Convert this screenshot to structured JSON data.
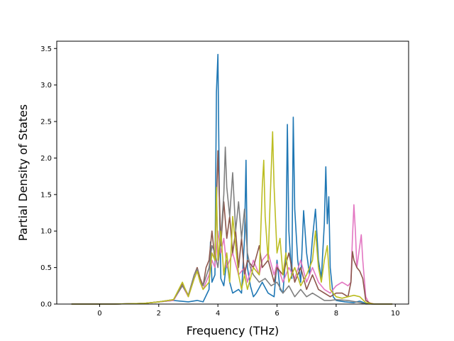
{
  "chart_data": {
    "type": "line",
    "title": "",
    "xlabel": "Frequency (THz)",
    "ylabel": "Partial Density of States",
    "xlim": [
      -1.45,
      10.45
    ],
    "ylim": [
      0,
      3.6
    ],
    "xticks": [
      0,
      2,
      4,
      6,
      8,
      10
    ],
    "yticks": [
      0.0,
      0.5,
      1.0,
      1.5,
      2.0,
      2.5,
      3.0,
      3.5
    ],
    "xtick_labels": [
      "0",
      "2",
      "4",
      "6",
      "8",
      "10"
    ],
    "ytick_labels": [
      "0.0",
      "0.5",
      "1.0",
      "1.5",
      "2.0",
      "2.5",
      "3.0",
      "3.5"
    ],
    "grid": false,
    "legend": "none",
    "series": [
      {
        "color": "#1f77b4",
        "points": [
          [
            -0.95,
            0
          ],
          [
            0.5,
            0
          ],
          [
            1.0,
            0.005
          ],
          [
            1.5,
            0.01
          ],
          [
            2.0,
            0.03
          ],
          [
            2.5,
            0.05
          ],
          [
            3.0,
            0.03
          ],
          [
            3.3,
            0.05
          ],
          [
            3.5,
            0.03
          ],
          [
            3.7,
            0.2
          ],
          [
            3.75,
            0.85
          ],
          [
            3.8,
            0.3
          ],
          [
            3.9,
            0.4
          ],
          [
            3.95,
            2.9
          ],
          [
            4.0,
            3.42
          ],
          [
            4.05,
            1.5
          ],
          [
            4.1,
            0.35
          ],
          [
            4.2,
            0.25
          ],
          [
            4.3,
            0.6
          ],
          [
            4.4,
            0.3
          ],
          [
            4.5,
            0.15
          ],
          [
            4.7,
            0.2
          ],
          [
            4.8,
            0.15
          ],
          [
            4.9,
            0.9
          ],
          [
            4.95,
            1.97
          ],
          [
            5.0,
            0.5
          ],
          [
            5.1,
            0.25
          ],
          [
            5.2,
            0.1
          ],
          [
            5.3,
            0.15
          ],
          [
            5.5,
            0.3
          ],
          [
            5.7,
            0.15
          ],
          [
            5.9,
            0.1
          ],
          [
            6.0,
            0.6
          ],
          [
            6.1,
            0.2
          ],
          [
            6.2,
            0.15
          ],
          [
            6.3,
            0.7
          ],
          [
            6.35,
            2.46
          ],
          [
            6.4,
            1.0
          ],
          [
            6.5,
            0.35
          ],
          [
            6.55,
            2.56
          ],
          [
            6.6,
            1.3
          ],
          [
            6.7,
            0.6
          ],
          [
            6.8,
            0.3
          ],
          [
            6.9,
            1.28
          ],
          [
            7.0,
            0.7
          ],
          [
            7.1,
            0.4
          ],
          [
            7.2,
            0.9
          ],
          [
            7.3,
            1.3
          ],
          [
            7.4,
            0.6
          ],
          [
            7.5,
            0.35
          ],
          [
            7.6,
            1.1
          ],
          [
            7.65,
            1.88
          ],
          [
            7.7,
            1.1
          ],
          [
            7.75,
            1.47
          ],
          [
            7.8,
            0.5
          ],
          [
            7.9,
            0.1
          ],
          [
            8.0,
            0.05
          ],
          [
            8.3,
            0.03
          ],
          [
            8.6,
            0.02
          ],
          [
            8.8,
            0.04
          ],
          [
            9.0,
            0.01
          ],
          [
            9.3,
            0
          ],
          [
            9.9,
            0
          ]
        ]
      },
      {
        "color": "#e377c2",
        "points": [
          [
            -0.95,
            0
          ],
          [
            0.5,
            0
          ],
          [
            1.0,
            0.005
          ],
          [
            1.5,
            0.01
          ],
          [
            2.0,
            0.03
          ],
          [
            2.5,
            0.05
          ],
          [
            2.8,
            0.25
          ],
          [
            3.0,
            0.1
          ],
          [
            3.2,
            0.35
          ],
          [
            3.3,
            0.45
          ],
          [
            3.4,
            0.3
          ],
          [
            3.5,
            0.2
          ],
          [
            3.7,
            0.4
          ],
          [
            3.8,
            0.6
          ],
          [
            3.9,
            0.5
          ],
          [
            4.0,
            1.0
          ],
          [
            4.1,
            0.7
          ],
          [
            4.2,
            0.9
          ],
          [
            4.3,
            0.5
          ],
          [
            4.5,
            0.7
          ],
          [
            4.7,
            0.4
          ],
          [
            4.9,
            0.5
          ],
          [
            5.0,
            0.3
          ],
          [
            5.2,
            0.6
          ],
          [
            5.4,
            0.4
          ],
          [
            5.5,
            0.6
          ],
          [
            5.7,
            0.7
          ],
          [
            5.9,
            0.4
          ],
          [
            6.0,
            0.55
          ],
          [
            6.2,
            0.3
          ],
          [
            6.4,
            0.5
          ],
          [
            6.6,
            0.35
          ],
          [
            6.8,
            0.6
          ],
          [
            7.0,
            0.3
          ],
          [
            7.2,
            0.5
          ],
          [
            7.4,
            0.3
          ],
          [
            7.6,
            0.2
          ],
          [
            7.8,
            0.15
          ],
          [
            8.0,
            0.25
          ],
          [
            8.2,
            0.3
          ],
          [
            8.4,
            0.25
          ],
          [
            8.5,
            0.3
          ],
          [
            8.55,
            0.9
          ],
          [
            8.6,
            1.36
          ],
          [
            8.65,
            1.0
          ],
          [
            8.7,
            0.5
          ],
          [
            8.8,
            0.8
          ],
          [
            8.85,
            0.95
          ],
          [
            8.9,
            0.6
          ],
          [
            9.0,
            0.1
          ],
          [
            9.1,
            0.02
          ],
          [
            9.3,
            0
          ],
          [
            9.9,
            0
          ]
        ]
      },
      {
        "color": "#8c564b",
        "points": [
          [
            -0.95,
            0
          ],
          [
            0.5,
            0
          ],
          [
            1.0,
            0.005
          ],
          [
            1.5,
            0.01
          ],
          [
            2.0,
            0.03
          ],
          [
            2.5,
            0.06
          ],
          [
            2.8,
            0.28
          ],
          [
            3.0,
            0.12
          ],
          [
            3.2,
            0.4
          ],
          [
            3.3,
            0.5
          ],
          [
            3.4,
            0.35
          ],
          [
            3.5,
            0.25
          ],
          [
            3.6,
            0.5
          ],
          [
            3.7,
            0.6
          ],
          [
            3.8,
            1.0
          ],
          [
            3.9,
            0.6
          ],
          [
            4.0,
            2.1
          ],
          [
            4.1,
            0.8
          ],
          [
            4.2,
            1.4
          ],
          [
            4.3,
            0.9
          ],
          [
            4.4,
            1.2
          ],
          [
            4.5,
            0.7
          ],
          [
            4.6,
            1.0
          ],
          [
            4.7,
            0.5
          ],
          [
            4.8,
            0.9
          ],
          [
            4.9,
            0.4
          ],
          [
            5.0,
            0.6
          ],
          [
            5.2,
            0.5
          ],
          [
            5.4,
            0.8
          ],
          [
            5.5,
            0.5
          ],
          [
            5.7,
            0.6
          ],
          [
            5.9,
            0.3
          ],
          [
            6.0,
            0.5
          ],
          [
            6.2,
            0.4
          ],
          [
            6.4,
            0.7
          ],
          [
            6.6,
            0.3
          ],
          [
            6.8,
            0.5
          ],
          [
            7.0,
            0.2
          ],
          [
            7.2,
            0.4
          ],
          [
            7.4,
            0.2
          ],
          [
            7.6,
            0.15
          ],
          [
            7.8,
            0.1
          ],
          [
            8.0,
            0.15
          ],
          [
            8.2,
            0.15
          ],
          [
            8.4,
            0.1
          ],
          [
            8.5,
            0.3
          ],
          [
            8.55,
            0.72
          ],
          [
            8.6,
            0.6
          ],
          [
            8.7,
            0.5
          ],
          [
            8.8,
            0.45
          ],
          [
            8.9,
            0.35
          ],
          [
            9.0,
            0.05
          ],
          [
            9.2,
            0
          ],
          [
            9.9,
            0
          ]
        ]
      },
      {
        "color": "#7f7f7f",
        "points": [
          [
            -0.95,
            0
          ],
          [
            0.5,
            0
          ],
          [
            1.0,
            0.005
          ],
          [
            1.5,
            0.01
          ],
          [
            2.0,
            0.03
          ],
          [
            2.5,
            0.06
          ],
          [
            2.8,
            0.25
          ],
          [
            3.0,
            0.12
          ],
          [
            3.2,
            0.4
          ],
          [
            3.3,
            0.48
          ],
          [
            3.4,
            0.3
          ],
          [
            3.5,
            0.25
          ],
          [
            3.7,
            0.5
          ],
          [
            3.8,
            0.8
          ],
          [
            3.9,
            0.7
          ],
          [
            4.0,
            0.5
          ],
          [
            4.1,
            0.9
          ],
          [
            4.2,
            1.5
          ],
          [
            4.25,
            2.15
          ],
          [
            4.3,
            1.6
          ],
          [
            4.4,
            1.2
          ],
          [
            4.5,
            1.8
          ],
          [
            4.6,
            1.0
          ],
          [
            4.7,
            1.4
          ],
          [
            4.8,
            0.9
          ],
          [
            4.9,
            1.3
          ],
          [
            5.0,
            0.7
          ],
          [
            5.1,
            0.5
          ],
          [
            5.2,
            0.4
          ],
          [
            5.4,
            0.3
          ],
          [
            5.6,
            0.35
          ],
          [
            5.8,
            0.25
          ],
          [
            6.0,
            0.3
          ],
          [
            6.2,
            0.15
          ],
          [
            6.4,
            0.25
          ],
          [
            6.6,
            0.1
          ],
          [
            6.8,
            0.2
          ],
          [
            7.0,
            0.1
          ],
          [
            7.2,
            0.15
          ],
          [
            7.4,
            0.1
          ],
          [
            7.6,
            0.05
          ],
          [
            7.8,
            0.05
          ],
          [
            8.0,
            0.06
          ],
          [
            8.4,
            0.05
          ],
          [
            8.8,
            0.02
          ],
          [
            9.0,
            0
          ],
          [
            9.9,
            0
          ]
        ]
      },
      {
        "color": "#bcbd22",
        "points": [
          [
            -0.95,
            0
          ],
          [
            0.5,
            0
          ],
          [
            1.0,
            0.005
          ],
          [
            1.5,
            0.01
          ],
          [
            2.0,
            0.03
          ],
          [
            2.5,
            0.06
          ],
          [
            2.8,
            0.3
          ],
          [
            3.0,
            0.1
          ],
          [
            3.2,
            0.35
          ],
          [
            3.3,
            0.45
          ],
          [
            3.4,
            0.3
          ],
          [
            3.5,
            0.2
          ],
          [
            3.7,
            0.3
          ],
          [
            3.8,
            0.7
          ],
          [
            3.9,
            0.6
          ],
          [
            3.95,
            1.6
          ],
          [
            4.0,
            0.6
          ],
          [
            4.1,
            1.0
          ],
          [
            4.2,
            0.4
          ],
          [
            4.3,
            0.7
          ],
          [
            4.4,
            0.3
          ],
          [
            4.5,
            1.2
          ],
          [
            4.6,
            0.8
          ],
          [
            4.7,
            0.4
          ],
          [
            4.8,
            0.2
          ],
          [
            4.9,
            0.4
          ],
          [
            5.0,
            0.2
          ],
          [
            5.2,
            0.5
          ],
          [
            5.4,
            0.4
          ],
          [
            5.5,
            1.6
          ],
          [
            5.55,
            1.97
          ],
          [
            5.6,
            1.2
          ],
          [
            5.7,
            0.6
          ],
          [
            5.8,
            1.8
          ],
          [
            5.85,
            2.36
          ],
          [
            5.9,
            1.6
          ],
          [
            6.0,
            0.7
          ],
          [
            6.1,
            0.9
          ],
          [
            6.2,
            0.4
          ],
          [
            6.3,
            0.7
          ],
          [
            6.4,
            0.3
          ],
          [
            6.6,
            0.5
          ],
          [
            6.8,
            0.25
          ],
          [
            7.0,
            0.4
          ],
          [
            7.2,
            0.6
          ],
          [
            7.3,
            1.0
          ],
          [
            7.4,
            0.5
          ],
          [
            7.5,
            0.3
          ],
          [
            7.6,
            0.6
          ],
          [
            7.7,
            0.8
          ],
          [
            7.8,
            0.2
          ],
          [
            8.0,
            0.1
          ],
          [
            8.2,
            0.08
          ],
          [
            8.4,
            0.1
          ],
          [
            8.6,
            0.12
          ],
          [
            8.8,
            0.1
          ],
          [
            9.0,
            0.02
          ],
          [
            9.3,
            0
          ],
          [
            9.9,
            0
          ]
        ]
      }
    ]
  }
}
